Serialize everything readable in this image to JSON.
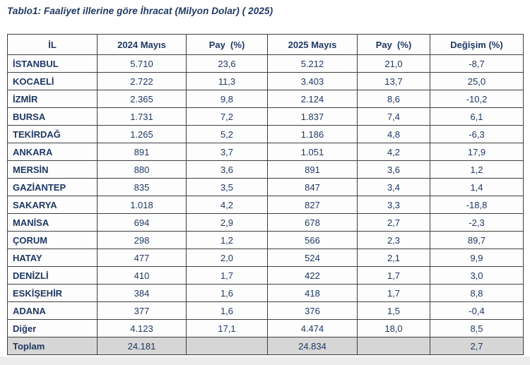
{
  "title": "Tablo1: Faaliyet illerine göre İhracat (Milyon Dolar) ( 2025)",
  "colors": {
    "text": "#1f3864",
    "border": "#3f3f3f",
    "total_row_bg": "#d6d6d6",
    "page_bottom_bg": "#ececec"
  },
  "table": {
    "columns": [
      "İL",
      "2024 Mayıs",
      "Pay  (%)",
      "2025 Mayıs",
      "Pay  (%)",
      "Değişim (%)"
    ],
    "rows": [
      {
        "il": "İSTANBUL",
        "v2024": "5.710",
        "pay2024": "23,6",
        "v2025": "5.212",
        "pay2025": "21,0",
        "degisim": "-8,7"
      },
      {
        "il": "KOCAELİ",
        "v2024": "2.722",
        "pay2024": "11,3",
        "v2025": "3.403",
        "pay2025": "13,7",
        "degisim": "25,0"
      },
      {
        "il": "İZMİR",
        "v2024": "2.365",
        "pay2024": "9,8",
        "v2025": "2.124",
        "pay2025": "8,6",
        "degisim": "-10,2"
      },
      {
        "il": "BURSA",
        "v2024": "1.731",
        "pay2024": "7,2",
        "v2025": "1.837",
        "pay2025": "7,4",
        "degisim": "6,1"
      },
      {
        "il": "TEKİRDAĞ",
        "v2024": "1.265",
        "pay2024": "5,2",
        "v2025": "1.186",
        "pay2025": "4,8",
        "degisim": "-6,3"
      },
      {
        "il": "ANKARA",
        "v2024": "891",
        "pay2024": "3,7",
        "v2025": "1.051",
        "pay2025": "4,2",
        "degisim": "17,9"
      },
      {
        "il": "MERSİN",
        "v2024": "880",
        "pay2024": "3,6",
        "v2025": "891",
        "pay2025": "3,6",
        "degisim": "1,2"
      },
      {
        "il": "GAZİANTEP",
        "v2024": "835",
        "pay2024": "3,5",
        "v2025": "847",
        "pay2025": "3,4",
        "degisim": "1,4"
      },
      {
        "il": "SAKARYA",
        "v2024": "1.018",
        "pay2024": "4,2",
        "v2025": "827",
        "pay2025": "3,3",
        "degisim": "-18,8"
      },
      {
        "il": "MANİSA",
        "v2024": "694",
        "pay2024": "2,9",
        "v2025": "678",
        "pay2025": "2,7",
        "degisim": "-2,3"
      },
      {
        "il": "ÇORUM",
        "v2024": "298",
        "pay2024": "1,2",
        "v2025": "566",
        "pay2025": "2,3",
        "degisim": "89,7"
      },
      {
        "il": "HATAY",
        "v2024": "477",
        "pay2024": "2,0",
        "v2025": "524",
        "pay2025": "2,1",
        "degisim": "9,9"
      },
      {
        "il": "DENİZLİ",
        "v2024": "410",
        "pay2024": "1,7",
        "v2025": "422",
        "pay2025": "1,7",
        "degisim": "3,0"
      },
      {
        "il": "ESKİŞEHİR",
        "v2024": "384",
        "pay2024": "1,6",
        "v2025": "418",
        "pay2025": "1,7",
        "degisim": "8,8"
      },
      {
        "il": "ADANA",
        "v2024": "377",
        "pay2024": "1,6",
        "v2025": "376",
        "pay2025": "1,5",
        "degisim": "-0,4"
      },
      {
        "il": "Diğer",
        "v2024": "4.123",
        "pay2024": "17,1",
        "v2025": "4.474",
        "pay2025": "18,0",
        "degisim": "8,5"
      }
    ],
    "total_row": {
      "il": "Toplam",
      "v2024": "24.181",
      "pay2024": "",
      "v2025": "24.834",
      "pay2025": "",
      "degisim": "2,7"
    }
  }
}
